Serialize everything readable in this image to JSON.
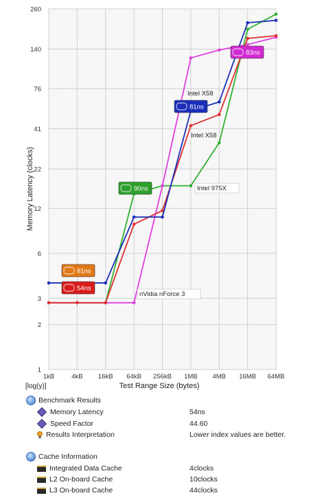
{
  "chart_data": {
    "type": "line",
    "scale_label": "[log(y)]",
    "xlabel": "Test Range Size (bytes)",
    "ylabel": "Memory Latency (clocks)",
    "y_scale": "log",
    "ylim": [
      1,
      260
    ],
    "yticks": [
      1,
      2,
      3,
      6,
      12,
      22,
      41,
      76,
      140,
      260
    ],
    "categories": [
      "1kB",
      "4kB",
      "16kB",
      "64kB",
      "256kB",
      "1MB",
      "4MB",
      "16MB",
      "64MB"
    ],
    "grid": true,
    "series": [
      {
        "name": "Intel X58",
        "color": "#1c2fb8",
        "x": [
          "1kB",
          "4kB",
          "16kB",
          "64kB",
          "256kB",
          "1MB",
          "4MB",
          "16MB",
          "64MB"
        ],
        "values": [
          3.8,
          3.8,
          3.8,
          10.5,
          10.5,
          54,
          62,
          210,
          218
        ]
      },
      {
        "name": "Intel X58",
        "color": "#e03030",
        "x": [
          "1kB",
          "4kB",
          "16kB",
          "64kB",
          "256kB",
          "1MB",
          "4MB",
          "16MB",
          "64MB"
        ],
        "values": [
          2.8,
          2.8,
          2.8,
          9.4,
          11.6,
          43,
          51,
          165,
          172
        ]
      },
      {
        "name": "Intel 975X",
        "color": "#30b030",
        "x": [
          "1kB",
          "4kB",
          "16kB",
          "64kB",
          "256kB",
          "1MB",
          "4MB",
          "16MB",
          "64MB"
        ],
        "values": [
          2.8,
          2.8,
          2.8,
          15,
          17,
          17,
          33,
          190,
          240
        ]
      },
      {
        "name": "nVidia nForce 3",
        "color": "#e040e0",
        "x": [
          "1kB",
          "4kB",
          "16kB",
          "64kB",
          "256kB",
          "1MB",
          "4MB",
          "16MB",
          "64MB"
        ],
        "values": [
          2.8,
          2.8,
          2.8,
          2.8,
          17,
          122,
          138,
          150,
          168
        ]
      }
    ],
    "annotations": [
      {
        "text": "Intel X58",
        "color": "#1c2fb8",
        "box": false
      },
      {
        "text": "Intel X58",
        "color": "#e03030",
        "box": false
      },
      {
        "text": "Intel 975X",
        "color": "#30b030",
        "box": true
      },
      {
        "text": "nVidia nForce 3",
        "color": "#e040e0",
        "box": true
      }
    ],
    "badges": [
      {
        "text": "81ns",
        "color": "#1c2fb8"
      },
      {
        "text": "90ns",
        "color": "#2ea02e"
      },
      {
        "text": "81ns",
        "color": "#e07818"
      },
      {
        "text": "54ns",
        "color": "#d81c1c"
      },
      {
        "text": "83ns",
        "color": "#d02ad0"
      }
    ]
  },
  "results": {
    "benchmark": {
      "title": "Benchmark Results",
      "rows": [
        {
          "label": "Memory Latency",
          "value": "54ns"
        },
        {
          "label": "Speed Factor",
          "value": "44.60"
        },
        {
          "label": "Results Interpretation",
          "value": "Lower index values are better."
        }
      ]
    },
    "cache": {
      "title": "Cache Information",
      "rows": [
        {
          "label": "Integrated Data Cache",
          "value": "4clocks"
        },
        {
          "label": "L2 On-board Cache",
          "value": "10clocks"
        },
        {
          "label": "L3 On-board Cache",
          "value": "44clocks"
        }
      ]
    }
  }
}
